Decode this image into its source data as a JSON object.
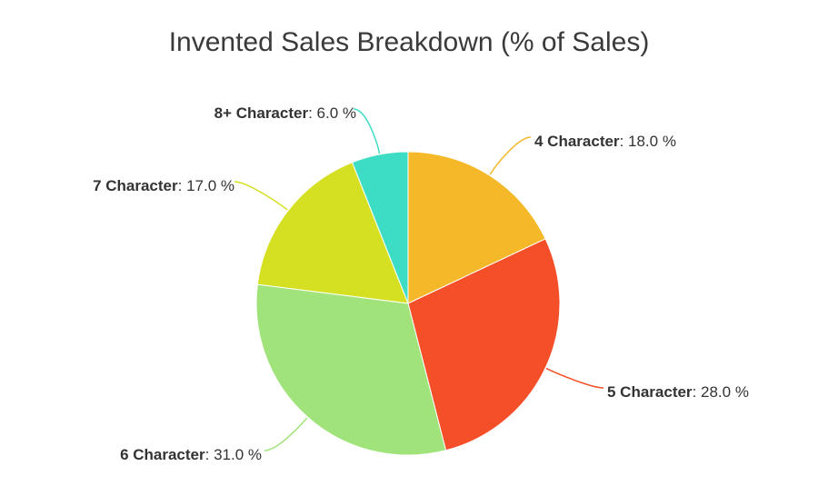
{
  "chart_data": {
    "type": "pie",
    "title": "Invented Sales Breakdown (% of Sales)",
    "categories": [
      "4 Character",
      "5 Character",
      "6 Character",
      "7 Character",
      "8+ Character"
    ],
    "values": [
      18.0,
      28.0,
      31.0,
      17.0,
      6.0
    ],
    "value_suffix": " %",
    "colors": [
      "#f5b829",
      "#f54f29",
      "#a1e37b",
      "#d6e022",
      "#3ddcc4"
    ],
    "start_angle": "12 o'clock",
    "direction": "clockwise",
    "data_labels": "outside with leader lines, format 'name: value %'"
  }
}
